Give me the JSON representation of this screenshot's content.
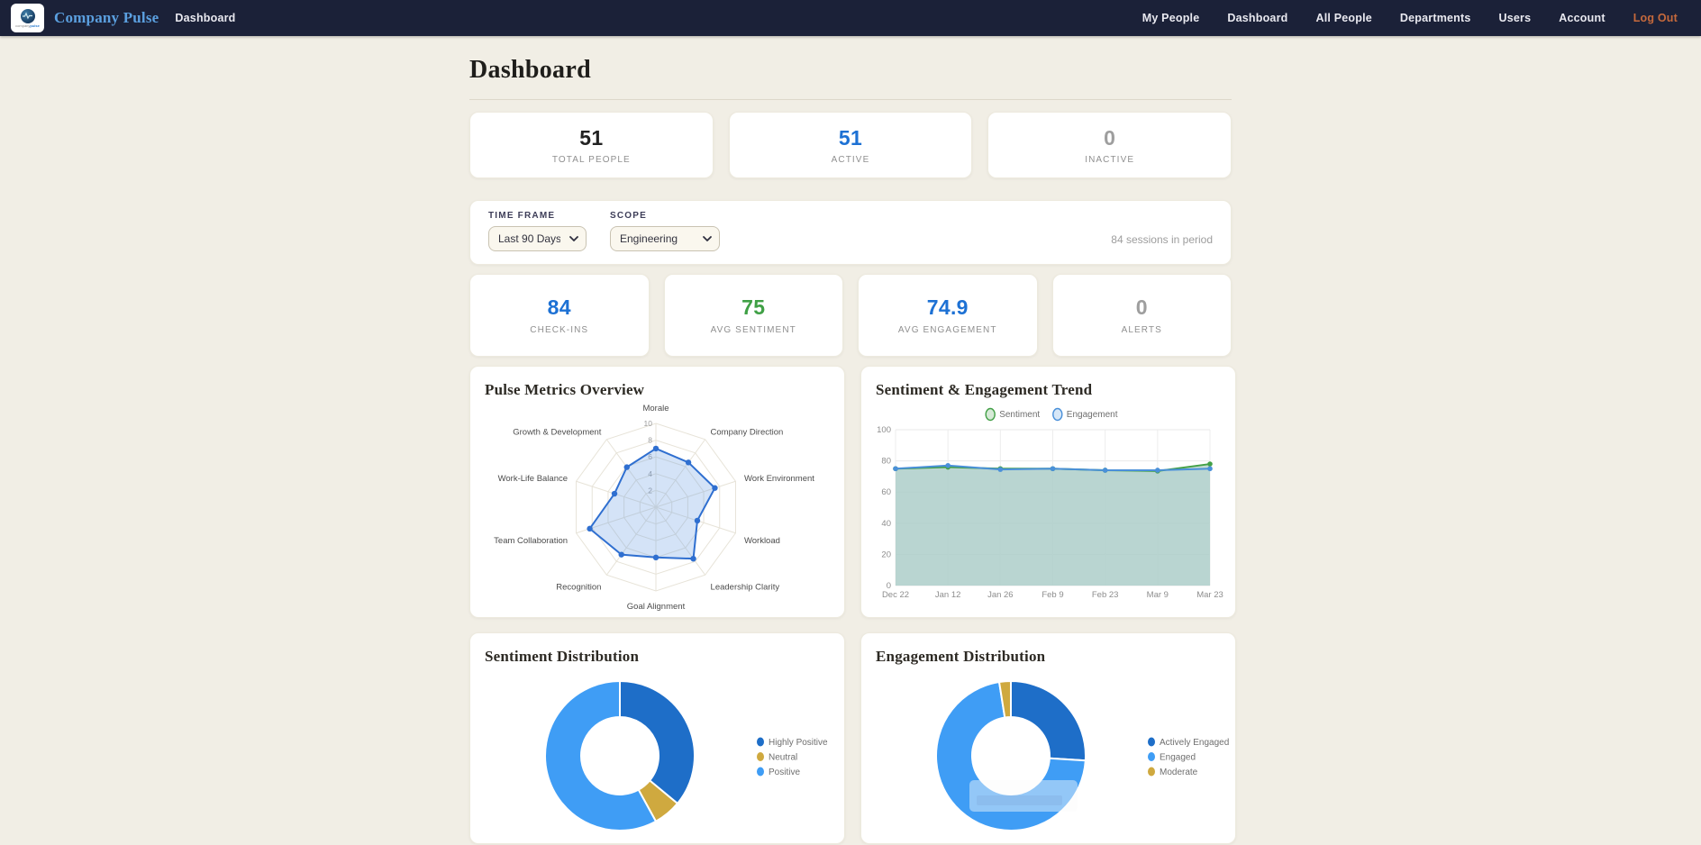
{
  "navbar": {
    "brand": "Company Pulse",
    "logo_company": "company",
    "logo_pulse": "pulse",
    "left_link": "Dashboard",
    "right_links": [
      "My People",
      "Dashboard",
      "All People",
      "Departments",
      "Users",
      "Account"
    ],
    "logout": "Log Out"
  },
  "page": {
    "title": "Dashboard"
  },
  "stats_row1": [
    {
      "value": "51",
      "label": "TOTAL PEOPLE",
      "color": "#222222"
    },
    {
      "value": "51",
      "label": "ACTIVE",
      "color": "#1d71d4"
    },
    {
      "value": "0",
      "label": "INACTIVE",
      "color": "#9e9e9e"
    }
  ],
  "filters": {
    "time_frame_label": "TIME FRAME",
    "time_frame_value": "Last 90 Days",
    "scope_label": "SCOPE",
    "scope_value": "Engineering",
    "sessions_note": "84 sessions in period"
  },
  "stats_row2": [
    {
      "value": "84",
      "label": "CHECK-INS",
      "color": "#1d71d4"
    },
    {
      "value": "75",
      "label": "AVG SENTIMENT",
      "color": "#3fa045"
    },
    {
      "value": "74.9",
      "label": "AVG ENGAGEMENT",
      "color": "#1d71d4"
    },
    {
      "value": "0",
      "label": "ALERTS",
      "color": "#9e9e9e"
    }
  ],
  "cards": {
    "radar_title": "Pulse Metrics Overview",
    "trend_title": "Sentiment & Engagement Trend",
    "sentiment_donut_title": "Sentiment Distribution",
    "engagement_donut_title": "Engagement Distribution"
  },
  "chart_data": [
    {
      "id": "pulse_radar",
      "type": "radar",
      "title": "Pulse Metrics Overview",
      "categories": [
        "Morale",
        "Company Direction",
        "Work Environment",
        "Workload",
        "Leadership Clarity",
        "Goal Alignment",
        "Recognition",
        "Team Collaboration",
        "Work-Life Balance",
        "Growth & Development"
      ],
      "values": [
        7.0,
        6.6,
        7.4,
        5.2,
        7.6,
        6.0,
        7.0,
        8.3,
        5.2,
        5.9
      ],
      "rmax": 10,
      "ticks": [
        2,
        4,
        6,
        8,
        10
      ],
      "line_color": "#2f6fd0",
      "fill_color": "rgba(100,155,225,0.28)",
      "grid_color": "#e7e3d8"
    },
    {
      "id": "trend",
      "type": "line",
      "title": "Sentiment & Engagement Trend",
      "x": [
        "Dec 22",
        "Jan 12",
        "Jan 26",
        "Feb 9",
        "Feb 23",
        "Mar 9",
        "Mar 23"
      ],
      "series": [
        {
          "name": "Sentiment",
          "color": "#43a047",
          "values": [
            75,
            76,
            75,
            75,
            74,
            73.5,
            78
          ]
        },
        {
          "name": "Engagement",
          "color": "#4a90d9",
          "values": [
            75,
            77,
            74.5,
            75,
            74,
            74,
            75
          ]
        }
      ],
      "ylim": [
        0,
        100
      ],
      "yticks": [
        0,
        20,
        40,
        60,
        80,
        100
      ],
      "area_fill": "#b7d5c9",
      "legend_position": "top",
      "grid": true
    },
    {
      "id": "sentiment_donut",
      "type": "pie",
      "title": "Sentiment Distribution",
      "labels": [
        "Highly Positive",
        "Neutral",
        "Positive"
      ],
      "values": [
        36,
        6,
        58
      ],
      "colors": [
        "#1e6ec8",
        "#cfa93f",
        "#3f9df5"
      ],
      "donut": true,
      "legend_position": "right"
    },
    {
      "id": "engagement_donut",
      "type": "pie",
      "title": "Engagement Distribution",
      "labels": [
        "Actively Engaged",
        "Engaged",
        "Moderate"
      ],
      "values": [
        26,
        71.5,
        2.5
      ],
      "colors": [
        "#1e6ec8",
        "#3f9df5",
        "#cfa93f"
      ],
      "donut": true,
      "legend_position": "right"
    }
  ]
}
